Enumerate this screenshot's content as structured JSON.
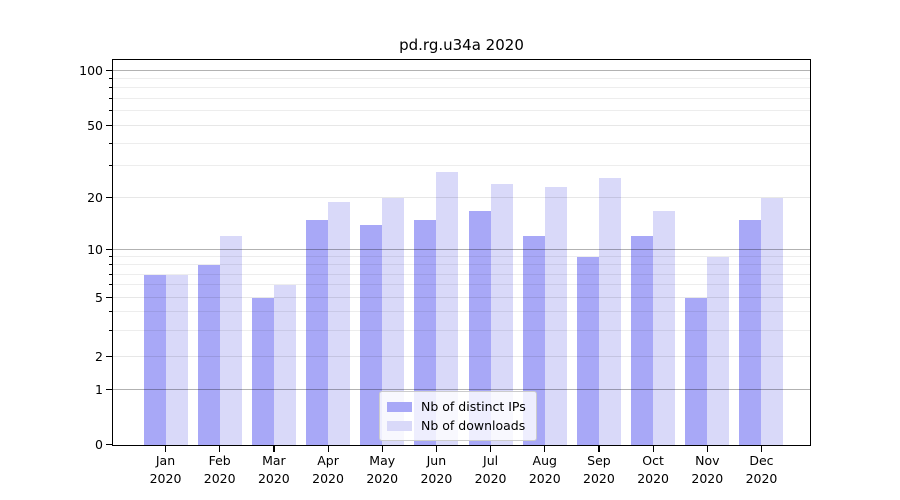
{
  "title": "pd.rg.u34a 2020",
  "chart_data": {
    "type": "bar",
    "title": "pd.rg.u34a 2020",
    "categories": [
      "Jan 2020",
      "Feb 2020",
      "Mar 2020",
      "Apr 2020",
      "May 2020",
      "Jun 2020",
      "Jul 2020",
      "Aug 2020",
      "Sep 2020",
      "Oct 2020",
      "Nov 2020",
      "Dec 2020"
    ],
    "series": [
      {
        "name": "Nb of distinct IPs",
        "color": "#a8a8f7",
        "values": [
          7,
          8,
          5,
          15,
          14,
          15,
          17,
          12,
          9,
          12,
          5,
          15
        ]
      },
      {
        "name": "Nb of downloads",
        "color": "#d9d9f9",
        "values": [
          7,
          12,
          6,
          19,
          20,
          28,
          24,
          23,
          26,
          17,
          9,
          20
        ]
      }
    ],
    "yscale": "log-with-zero",
    "yticks": [
      0,
      1,
      2,
      5,
      10,
      20,
      50,
      100
    ],
    "decade_yticks": [
      1,
      10,
      100
    ],
    "minor_yticks": [
      3,
      4,
      6,
      7,
      8,
      9,
      30,
      40,
      60,
      70,
      80,
      90
    ],
    "ylim": [
      0,
      110
    ],
    "grid": true,
    "legend_position": "lower center"
  }
}
